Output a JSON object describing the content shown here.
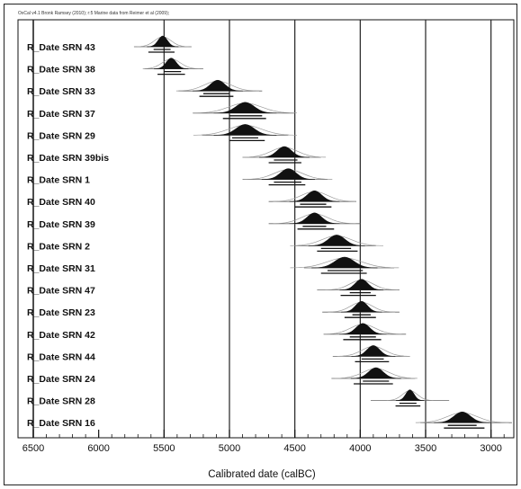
{
  "header_note": "OxCal v4.1 Bronk Ramsey (2010); r:5 Marine data from Reimer et al (2009);",
  "chart_data": {
    "type": "multiplot",
    "xlabel": "Calibrated date (calBC)",
    "xlim": [
      6500,
      2750
    ],
    "xticks": [
      6500,
      6000,
      5500,
      5000,
      4500,
      4000,
      3500,
      3000
    ],
    "gridlines": [
      5500,
      5000,
      4500,
      4000,
      3500,
      3000
    ],
    "series": [
      {
        "label": "R_Date SRN 43",
        "center": 5510,
        "spread": 50,
        "range1": [
          5580,
          5450
        ],
        "range2": [
          5620,
          5420
        ],
        "tail": [
          5730,
          5290
        ]
      },
      {
        "label": "R_Date SRN 38",
        "center": 5445,
        "spread": 55,
        "range1": [
          5500,
          5370
        ],
        "range2": [
          5550,
          5340
        ],
        "tail": [
          5650,
          5200
        ]
      },
      {
        "label": "R_Date SRN 33",
        "center": 5090,
        "spread": 80,
        "range1": [
          5200,
          5000
        ],
        "range2": [
          5230,
          4970
        ],
        "tail": [
          5390,
          4750
        ]
      },
      {
        "label": "R_Date SRN 37",
        "center": 4880,
        "spread": 100,
        "range1": [
          5000,
          4750
        ],
        "range2": [
          5050,
          4720
        ],
        "tail": [
          5280,
          4500
        ]
      },
      {
        "label": "R_Date SRN 29",
        "center": 4880,
        "spread": 100,
        "range1": [
          4980,
          4780
        ],
        "range2": [
          5000,
          4730
        ],
        "tail": [
          5210,
          4550
        ]
      },
      {
        "label": "R_Date SRN 39bis",
        "center": 4580,
        "spread": 80,
        "range1": [
          4660,
          4480
        ],
        "range2": [
          4700,
          4450
        ],
        "tail": [
          4900,
          4300
        ]
      },
      {
        "label": "R_Date SRN 1",
        "center": 4550,
        "spread": 85,
        "range1": [
          4660,
          4450
        ],
        "range2": [
          4700,
          4420
        ],
        "tail": [
          4900,
          4250
        ]
      },
      {
        "label": "R_Date SRN 40",
        "center": 4350,
        "spread": 80,
        "range1": [
          4460,
          4260
        ],
        "range2": [
          4500,
          4220
        ],
        "tail": [
          4700,
          4030
        ]
      },
      {
        "label": "R_Date SRN 39",
        "center": 4350,
        "spread": 80,
        "range1": [
          4440,
          4260
        ],
        "range2": [
          4480,
          4200
        ],
        "tail": [
          4700,
          4000
        ]
      },
      {
        "label": "R_Date SRN 2",
        "center": 4180,
        "spread": 90,
        "range1": [
          4300,
          4070
        ],
        "range2": [
          4330,
          4020
        ],
        "tail": [
          4500,
          3880
        ]
      },
      {
        "label": "R_Date SRN 31",
        "center": 4120,
        "spread": 105,
        "range1": [
          4250,
          3980
        ],
        "range2": [
          4300,
          3950
        ],
        "tail": [
          4430,
          3740
        ]
      },
      {
        "label": "R_Date SRN 47",
        "center": 3990,
        "spread": 70,
        "range1": [
          4080,
          3920
        ],
        "range2": [
          4150,
          3880
        ],
        "tail": [
          4330,
          3700
        ]
      },
      {
        "label": "R_Date SRN 23",
        "center": 3990,
        "spread": 65,
        "range1": [
          4060,
          3920
        ],
        "range2": [
          4120,
          3880
        ],
        "tail": [
          4290,
          3700
        ]
      },
      {
        "label": "R_Date SRN 42",
        "center": 3980,
        "spread": 75,
        "range1": [
          4080,
          3880
        ],
        "range2": [
          4130,
          3840
        ],
        "tail": [
          4280,
          3650
        ]
      },
      {
        "label": "R_Date SRN 44",
        "center": 3900,
        "spread": 70,
        "range1": [
          3990,
          3820
        ],
        "range2": [
          4040,
          3780
        ],
        "tail": [
          4210,
          3620
        ]
      },
      {
        "label": "R_Date SRN 24",
        "center": 3880,
        "spread": 80,
        "range1": [
          3980,
          3780
        ],
        "range2": [
          4050,
          3750
        ],
        "tail": [
          4220,
          3580
        ]
      },
      {
        "label": "R_Date SRN 28",
        "center": 3620,
        "spread": 45,
        "range1": [
          3700,
          3570
        ],
        "range2": [
          3730,
          3540
        ],
        "tail": [
          3920,
          3320
        ]
      },
      {
        "label": "R_Date SRN 16",
        "center": 3220,
        "spread": 90,
        "range1": [
          3330,
          3110
        ],
        "range2": [
          3360,
          3050
        ],
        "tail": [
          3540,
          2840
        ]
      }
    ]
  }
}
